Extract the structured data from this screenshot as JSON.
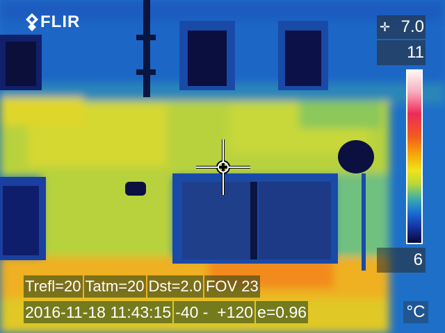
{
  "brand": {
    "logo_text": "FLIR"
  },
  "measurement": {
    "spot_value": "7.0",
    "spot_icon": "crosshair-icon"
  },
  "scale": {
    "max": "11",
    "min": "6",
    "unit": "°C",
    "palette": [
      "#ffffff",
      "#f0506e",
      "#f5a00a",
      "#f0e41a",
      "#3fb0a5",
      "#1a70d8",
      "#08083a"
    ]
  },
  "parameters": {
    "trefl": "Trefl=20",
    "tatm": "Tatm=20",
    "dst": "Dst=2.0",
    "fov": "FOV 23"
  },
  "status": {
    "datetime": "2016-11-18 11:43:15",
    "range": "-40 -  +120",
    "emissivity": "e=0.96"
  }
}
